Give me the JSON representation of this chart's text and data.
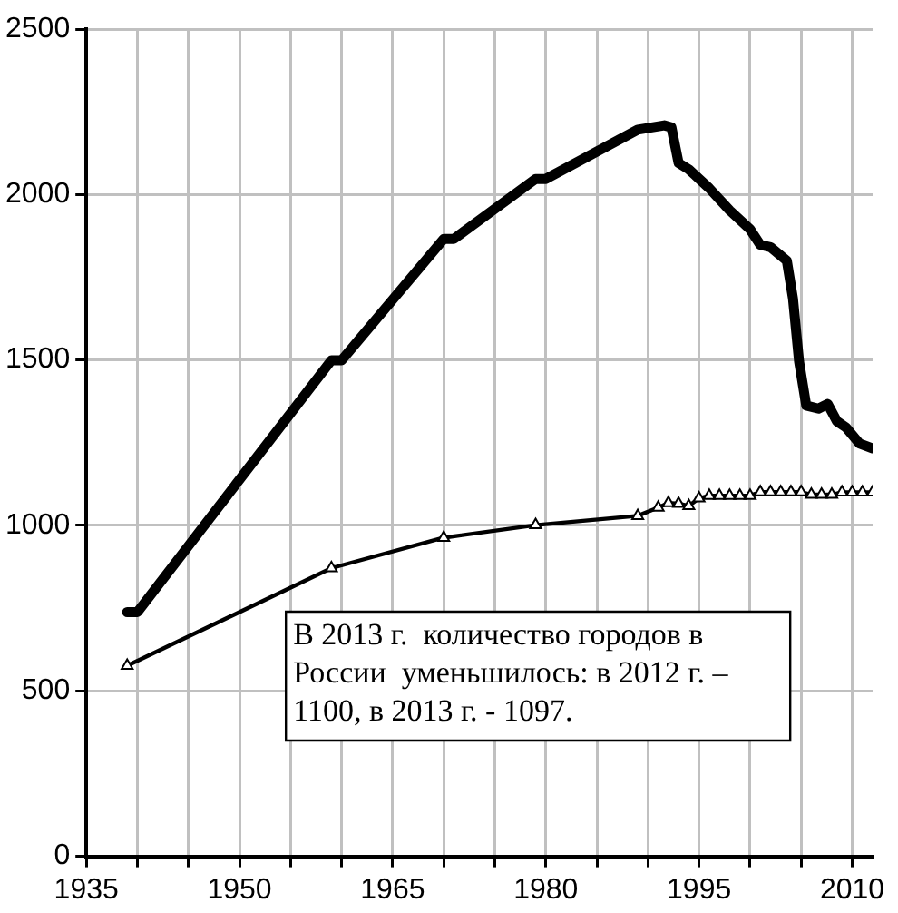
{
  "chart_data": {
    "type": "line",
    "annotations": [
      "В 2013 г.  количество городов в России  уменьшилось: в 2012 г. – 1100, в 2013 г. - 1097."
    ],
    "xlim": [
      1935,
      2012
    ],
    "xticks": [
      1935,
      {
        "value": 1940,
        "label": null
      },
      {
        "value": 1945,
        "label": null
      },
      1950,
      {
        "value": 1955,
        "label": null
      },
      {
        "value": 1960,
        "label": null
      },
      1965,
      {
        "value": 1970,
        "label": null
      },
      {
        "value": 1975,
        "label": null
      },
      1980,
      {
        "value": 1985,
        "label": null
      },
      {
        "value": 1990,
        "label": null
      },
      1995,
      {
        "value": 2000,
        "label": null
      },
      {
        "value": 2005,
        "label": null
      },
      2010
    ],
    "ylim": [
      0,
      2500
    ],
    "yticks": [
      0,
      500,
      1000,
      1500,
      2000,
      2500
    ],
    "grid": true,
    "series": [
      {
        "color": "#000000",
        "marker": "none",
        "x": [
          1939,
          1940,
          1959,
          1960,
          1970,
          1971,
          1979,
          1980,
          1989,
          1991.6,
          1992.3,
          1993,
          1994,
          1996,
          1998,
          2000,
          2001,
          2002,
          2003.6,
          2004.2,
          2004.8,
          2005.5,
          2006.7,
          2007.6,
          2008.5,
          2009.4,
          2010.7,
          2012
        ],
        "values": [
          738,
          738,
          1499,
          1499,
          1866,
          1866,
          2047,
          2047,
          2196,
          2209,
          2203,
          2095,
          2076,
          2019,
          1952,
          1895,
          1848,
          1841,
          1800,
          1686,
          1495,
          1362,
          1353,
          1367,
          1315,
          1296,
          1248,
          1233
        ]
      },
      {
        "color": "#000000",
        "marker": "triangle",
        "x": [
          1939,
          1959,
          1970,
          1979,
          1989,
          1991,
          1992,
          1993,
          1994,
          1995,
          1996,
          1997,
          1998,
          1999,
          2000,
          2001,
          2002,
          2003,
          2004,
          2005,
          2006,
          2007,
          2008,
          2009,
          2010,
          2011,
          2012
        ],
        "values": [
          576,
          871,
          963,
          1001,
          1029,
          1054,
          1068,
          1066,
          1059,
          1082,
          1090,
          1090,
          1090,
          1090,
          1090,
          1101,
          1101,
          1101,
          1101,
          1101,
          1093,
          1093,
          1093,
          1100,
          1100,
          1100,
          1100
        ]
      }
    ]
  }
}
